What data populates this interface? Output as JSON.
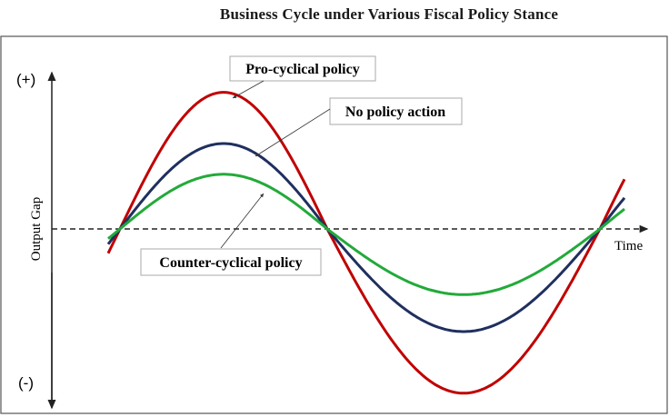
{
  "title": "Business Cycle under Various Fiscal Policy Stance",
  "y_axis": {
    "label": "Output Gap",
    "top_label": "(+)",
    "bottom_label": "(-)"
  },
  "x_axis": {
    "label": "Time"
  },
  "annotations": {
    "pro": "Pro-cyclical policy",
    "none": "No policy action",
    "counter": "Counter-cyclical policy"
  },
  "series": [
    {
      "key": "pro",
      "color": "#c00000",
      "relative_amplitude": 1.6
    },
    {
      "key": "none",
      "color": "#1f2f5f",
      "relative_amplitude": 1.0
    },
    {
      "key": "counter",
      "color": "#22aa3a",
      "relative_amplitude": 0.64
    }
  ]
}
